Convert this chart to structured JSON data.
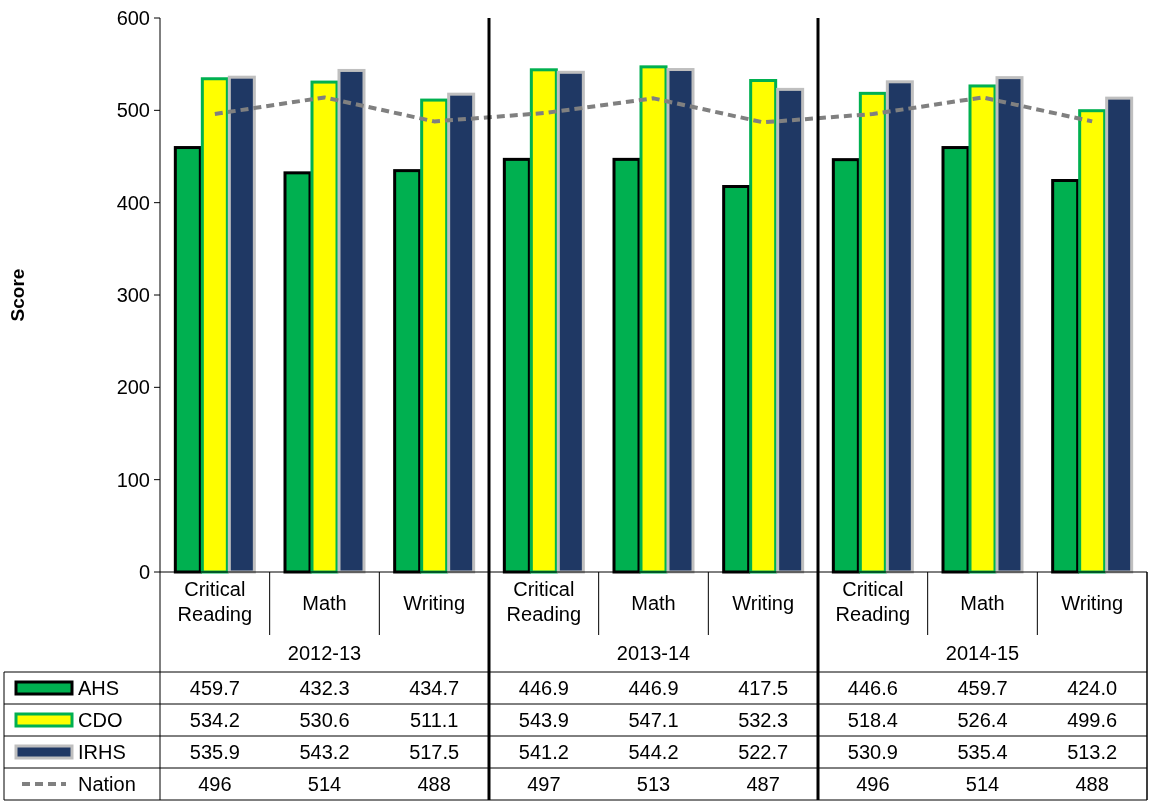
{
  "chart_data": {
    "type": "bar",
    "ylabel": "Score",
    "categories": [
      "Critical Reading",
      "Math",
      "Writing",
      "Critical Reading",
      "Math",
      "Writing",
      "Critical Reading",
      "Math",
      "Writing"
    ],
    "annotations": [
      "2012-13",
      "2013-14",
      "2014-15"
    ],
    "ylim": [
      0,
      600
    ],
    "yticks": [
      0,
      100,
      200,
      300,
      400,
      500,
      600
    ],
    "grid": false,
    "legend": "bottom",
    "series": [
      {
        "name": "AHS",
        "color": "#00b050",
        "values": [
          459.7,
          432.3,
          434.7,
          446.9,
          446.9,
          417.5,
          446.6,
          459.7,
          424.0
        ],
        "value_labels": [
          "459.7",
          "432.3",
          "434.7",
          "446.9",
          "446.9",
          "417.5",
          "446.6",
          "459.7",
          "424.0"
        ]
      },
      {
        "name": "CDO",
        "color": "#ffff00",
        "values": [
          534.2,
          530.6,
          511.1,
          543.9,
          547.1,
          532.3,
          518.4,
          526.4,
          499.6
        ],
        "value_labels": [
          "534.2",
          "530.6",
          "511.1",
          "543.9",
          "547.1",
          "532.3",
          "518.4",
          "526.4",
          "499.6"
        ]
      },
      {
        "name": "IRHS",
        "color": "#1f3864",
        "values": [
          535.9,
          543.2,
          517.5,
          541.2,
          544.2,
          522.7,
          530.9,
          535.4,
          513.2
        ],
        "value_labels": [
          "535.9",
          "543.2",
          "517.5",
          "541.2",
          "544.2",
          "522.7",
          "530.9",
          "535.4",
          "513.2"
        ]
      },
      {
        "name": "Nation",
        "type": "line",
        "color": "#808080",
        "line_style": "dashed",
        "marker": "none",
        "values": [
          496,
          514,
          488,
          497,
          513,
          487,
          496,
          514,
          488
        ],
        "value_labels": [
          "496",
          "514",
          "488",
          "497",
          "513",
          "487",
          "496",
          "514",
          "488"
        ]
      }
    ]
  }
}
